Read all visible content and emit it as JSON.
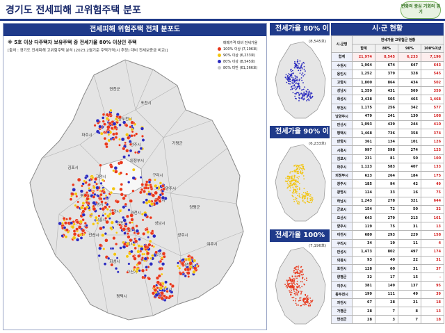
{
  "header": {
    "title": "경기도 전세피해 고위험주택 분포",
    "logo": "변화의 중심 기회의 경기"
  },
  "main": {
    "title": "전세피해 위험주택 전체 분포도",
    "note1": "※ 5호 이상 다주택자 보유주택 중 전세가율 80% 이상인 주택",
    "note2": "[출처 : 경기도 전세피해 고위험주택 분석 (2023.2월기준 주택가격(시 추정) 대비 전세보증금 비교)]",
    "legend": {
      "title": "매매가격 대비 전세가율",
      "items": [
        {
          "label": "100% 이상 (7,196호)",
          "color": "#e8381c"
        },
        {
          "label": "90% 이상 (6,233호)",
          "color": "#f2c40f"
        },
        {
          "label": "80% 이상 (8,545호)",
          "color": "#2b2bbf"
        },
        {
          "label": "80% 미만 (61,366호)",
          "color": "#c9c9c9"
        }
      ]
    },
    "regions": [
      "연천군",
      "포천시",
      "동두천시",
      "파주시",
      "양주시",
      "가평군",
      "김포시",
      "고양시",
      "의정부시",
      "구리시",
      "남양주시",
      "양평군",
      "부천시",
      "광명시",
      "하남시",
      "시흥시",
      "안산시",
      "군포시",
      "의왕시",
      "과천시",
      "성남시",
      "광주시",
      "여주시",
      "화성시",
      "오산시",
      "용인시",
      "이천시",
      "평택시",
      "안성시",
      "수원시",
      "안양시"
    ]
  },
  "mini_maps": [
    {
      "title": "전세가율 80% 이상",
      "count": "(8,545호)",
      "color": "#2b2bbf"
    },
    {
      "title": "전세가율 90% 이상",
      "count": "(6,233호)",
      "color": "#f2c40f"
    },
    {
      "title": "전세가율 100% 이상",
      "count": "(7,196호)",
      "color": "#e8381c"
    }
  ],
  "table": {
    "title": "시·군 현황",
    "col_region": "시.군명",
    "col_group": "전세가율 고위험군 현황",
    "cols": [
      "합계",
      "80%",
      "90%",
      "100%이상"
    ],
    "rows": [
      [
        "합계",
        "21,974",
        "8,545",
        "6,233",
        "7,196"
      ],
      [
        "수원시",
        "1,964",
        "674",
        "647",
        "643"
      ],
      [
        "용인시",
        "1,252",
        "379",
        "328",
        "545"
      ],
      [
        "고양시",
        "1,800",
        "864",
        "434",
        "502"
      ],
      [
        "성남시",
        "1,359",
        "431",
        "569",
        "359"
      ],
      [
        "화성시",
        "2,438",
        "505",
        "465",
        "1,468"
      ],
      [
        "부천시",
        "1,175",
        "256",
        "342",
        "577"
      ],
      [
        "남양주시",
        "479",
        "241",
        "130",
        "108"
      ],
      [
        "안산시",
        "1,093",
        "439",
        "244",
        "410"
      ],
      [
        "평택시",
        "1,468",
        "736",
        "358",
        "374"
      ],
      [
        "안양시",
        "361",
        "134",
        "101",
        "126"
      ],
      [
        "시흥시",
        "997",
        "598",
        "274",
        "125"
      ],
      [
        "김포시",
        "231",
        "81",
        "50",
        "100"
      ],
      [
        "파주시",
        "1,123",
        "583",
        "407",
        "133"
      ],
      [
        "의정부시",
        "623",
        "264",
        "184",
        "175"
      ],
      [
        "광주시",
        "185",
        "94",
        "42",
        "49"
      ],
      [
        "광명시",
        "124",
        "33",
        "16",
        "75"
      ],
      [
        "하남시",
        "1,243",
        "278",
        "321",
        "644"
      ],
      [
        "군포시",
        "154",
        "72",
        "50",
        "32"
      ],
      [
        "오산시",
        "643",
        "279",
        "213",
        "161"
      ],
      [
        "양주시",
        "119",
        "75",
        "31",
        "13"
      ],
      [
        "이천시",
        "680",
        "293",
        "229",
        "158"
      ],
      [
        "구리시",
        "34",
        "19",
        "11",
        "4"
      ],
      [
        "안성시",
        "1,473",
        "802",
        "497",
        "174"
      ],
      [
        "의왕시",
        "93",
        "40",
        "22",
        "31"
      ],
      [
        "포천시",
        "128",
        "60",
        "31",
        "37"
      ],
      [
        "양평군",
        "32",
        "17",
        "15",
        "-"
      ],
      [
        "여주시",
        "381",
        "149",
        "137",
        "95"
      ],
      [
        "동두천시",
        "199",
        "111",
        "49",
        "39"
      ],
      [
        "과천시",
        "67",
        "28",
        "21",
        "18"
      ],
      [
        "가평군",
        "28",
        "7",
        "8",
        "13"
      ],
      [
        "연천군",
        "28",
        "3",
        "7",
        "18"
      ]
    ]
  }
}
